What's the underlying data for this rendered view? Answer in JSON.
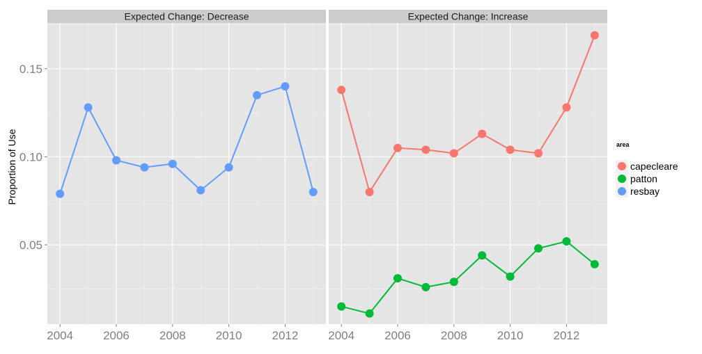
{
  "chart_data": {
    "type": "line",
    "ylabel": "Proportion of Use",
    "xlabel": "",
    "x_ticks": [
      2004,
      2006,
      2008,
      2010,
      2012
    ],
    "y_ticks": [
      0.05,
      0.1,
      0.15
    ],
    "y_tick_labels": [
      "0.05",
      "0.10",
      "0.15"
    ],
    "ylim": [
      0.005,
      0.176
    ],
    "xlim": [
      2003.55,
      2013.45
    ],
    "grid": true,
    "legend": {
      "title": "area",
      "position": "right",
      "entries": [
        {
          "name": "capecleare",
          "color": "#F8766D"
        },
        {
          "name": "patton",
          "color": "#00BA38"
        },
        {
          "name": "resbay",
          "color": "#619CFF"
        }
      ]
    },
    "panels": [
      {
        "title": "Expected Change: Decrease",
        "series": [
          {
            "name": "resbay",
            "color": "#619CFF",
            "x": [
              2004,
              2005,
              2006,
              2007,
              2008,
              2009,
              2010,
              2011,
              2012,
              2013
            ],
            "values": [
              0.079,
              0.128,
              0.098,
              0.094,
              0.096,
              0.081,
              0.094,
              0.135,
              0.14,
              0.08
            ]
          }
        ]
      },
      {
        "title": "Expected Change: Increase",
        "series": [
          {
            "name": "capecleare",
            "color": "#F8766D",
            "x": [
              2004,
              2005,
              2006,
              2007,
              2008,
              2009,
              2010,
              2011,
              2012,
              2013
            ],
            "values": [
              0.138,
              0.08,
              0.105,
              0.104,
              0.102,
              0.113,
              0.104,
              0.102,
              0.128,
              0.169
            ]
          },
          {
            "name": "patton",
            "color": "#00BA38",
            "x": [
              2004,
              2005,
              2006,
              2007,
              2008,
              2009,
              2010,
              2011,
              2012,
              2013
            ],
            "values": [
              0.015,
              0.011,
              0.031,
              0.026,
              0.029,
              0.044,
              0.032,
              0.048,
              0.052,
              0.039
            ]
          }
        ]
      }
    ]
  }
}
